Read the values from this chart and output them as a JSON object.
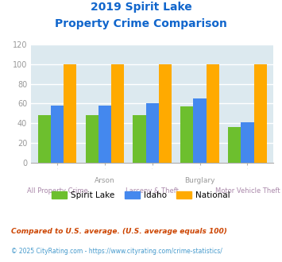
{
  "title_line1": "2019 Spirit Lake",
  "title_line2": "Property Crime Comparison",
  "categories": [
    "All Property Crime",
    "Arson",
    "Larceny & Theft",
    "Burglary",
    "Motor Vehicle Theft"
  ],
  "spirit_lake": [
    48,
    48,
    48,
    57,
    36
  ],
  "idaho": [
    58,
    58,
    60,
    65,
    41
  ],
  "national": [
    100,
    100,
    100,
    100,
    100
  ],
  "color_spirit_lake": "#6dbf2e",
  "color_idaho": "#4488ee",
  "color_national": "#ffaa00",
  "ylim": [
    0,
    120
  ],
  "yticks": [
    0,
    20,
    40,
    60,
    80,
    100,
    120
  ],
  "chart_bg": "#dce9ef",
  "title_color": "#1166cc",
  "xlabel_top_color": "#999999",
  "xlabel_bot_color": "#aa88aa",
  "legend_label_spirit": "Spirit Lake",
  "legend_label_idaho": "Idaho",
  "legend_label_national": "National",
  "footnote1": "Compared to U.S. average. (U.S. average equals 100)",
  "footnote2": "© 2025 CityRating.com - https://www.cityrating.com/crime-statistics/",
  "footnote1_color": "#cc4400",
  "footnote2_color": "#4499cc",
  "grid_color": "#ffffff",
  "tick_color": "#999999",
  "top_labels": [
    "",
    "Arson",
    "",
    "Burglary",
    ""
  ],
  "bot_labels": [
    "All Property Crime",
    "",
    "Larceny & Theft",
    "",
    "Motor Vehicle Theft"
  ]
}
